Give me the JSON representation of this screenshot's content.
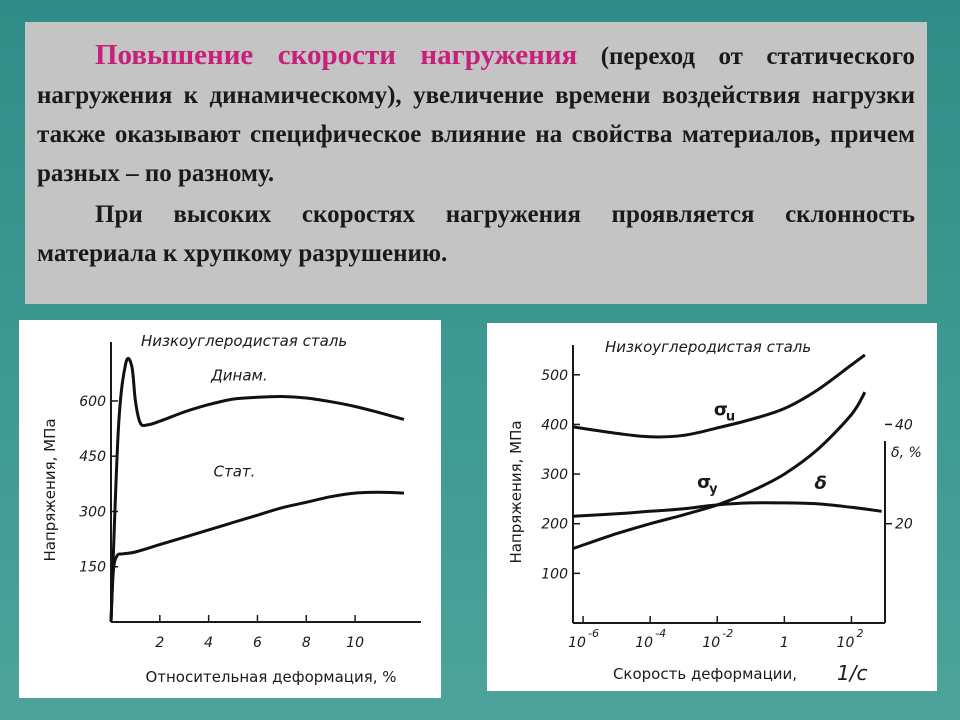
{
  "slide": {
    "highlight": "Повышение скорости нагружения",
    "para1_rest": " (переход от статического нагружения к динамическому), увеличение времени воздействия нагрузки также оказывают специфическое влияние на свойства материалов, причем разных – по разному.",
    "para2": "При высоких скоростях нагружения проявляется склонность материала к хрупкому разрушению."
  },
  "chart_data": [
    {
      "type": "line",
      "title": "Низкоуглеродистая сталь",
      "xlabel": "Относительная деформация, %",
      "ylabel": "Напряжения, МПа",
      "xlim": [
        0,
        12.7
      ],
      "ylim": [
        0,
        760
      ],
      "x_ticks": [
        "2",
        "4",
        "6",
        "8",
        "10"
      ],
      "y_ticks": [
        "150",
        "300",
        "450",
        "600"
      ],
      "series": [
        {
          "name": "Динам.",
          "x": [
            0,
            0.3,
            0.6,
            0.85,
            1.0,
            1.2,
            1.5,
            2,
            3,
            4,
            5,
            6,
            7,
            8,
            9,
            10,
            11,
            12
          ],
          "y": [
            0,
            520,
            700,
            695,
            600,
            540,
            535,
            545,
            570,
            590,
            605,
            610,
            612,
            608,
            598,
            585,
            568,
            550
          ]
        },
        {
          "name": "Стат.",
          "x": [
            0,
            0.1,
            0.25,
            0.5,
            1,
            2,
            3,
            4,
            5,
            6,
            7,
            8,
            9,
            10,
            11,
            12
          ],
          "y": [
            0,
            140,
            180,
            185,
            190,
            210,
            230,
            250,
            270,
            290,
            310,
            325,
            340,
            350,
            352,
            350
          ]
        }
      ]
    },
    {
      "type": "line",
      "title": "Низкоуглеродистая сталь",
      "xlabel": "Скорость деформации,",
      "xlabel_unit": "1/с",
      "ylabel": "Напряжения, МПа",
      "y2label": "δ, %",
      "x_scale": "log",
      "xlim": [
        -6.3,
        3
      ],
      "ylim": [
        0,
        560
      ],
      "y2lim": [
        0,
        56
      ],
      "x_ticks": [
        {
          "base": "10",
          "exp": "-6"
        },
        {
          "base": "10",
          "exp": "-4"
        },
        {
          "base": "10",
          "exp": "-2"
        },
        {
          "base": "1",
          "exp": ""
        },
        {
          "base": "10",
          "exp": "2"
        }
      ],
      "y_ticks": [
        "100",
        "200",
        "300",
        "400",
        "500"
      ],
      "y2_ticks": [
        "20",
        "40"
      ],
      "series": [
        {
          "name": "σ",
          "subscript": "u",
          "x": [
            -6.3,
            -5,
            -4,
            -3,
            -2,
            -1,
            0,
            1,
            2,
            2.4
          ],
          "y": [
            395,
            382,
            375,
            378,
            393,
            410,
            432,
            470,
            520,
            540
          ]
        },
        {
          "name": "σ",
          "subscript": "y",
          "x": [
            -6.3,
            -5,
            -4,
            -3,
            -2,
            -1,
            0,
            1,
            2,
            2.4
          ],
          "y": [
            150,
            180,
            200,
            218,
            238,
            265,
            300,
            350,
            420,
            465
          ]
        },
        {
          "name": "δ",
          "axis": "y2",
          "x": [
            -6.3,
            -5,
            -4,
            -3,
            -2,
            -1,
            0,
            1,
            2,
            2.9
          ],
          "y": [
            21.5,
            22,
            22.5,
            23,
            23.8,
            24.2,
            24.2,
            24,
            23.3,
            22.5
          ]
        }
      ]
    }
  ]
}
